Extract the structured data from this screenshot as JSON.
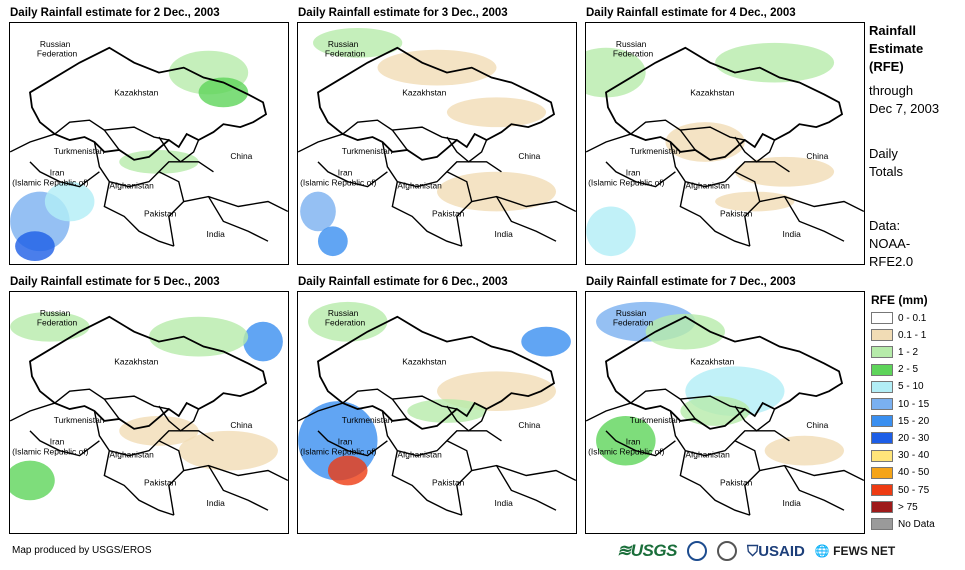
{
  "panels": [
    {
      "title": "Daily Rainfall estimate for 2 Dec., 2003"
    },
    {
      "title": "Daily Rainfall estimate for 3 Dec., 2003"
    },
    {
      "title": "Daily Rainfall estimate for 4 Dec., 2003"
    },
    {
      "title": "Daily Rainfall estimate for 5 Dec., 2003"
    },
    {
      "title": "Daily Rainfall estimate for 6 Dec., 2003"
    },
    {
      "title": "Daily Rainfall estimate for 7 Dec., 2003"
    }
  ],
  "map_labels": {
    "russia_1": "Russian",
    "russia_2": "Federation",
    "kazakhstan": "Kazakhstan",
    "turkmenistan": "Turkmenistan",
    "china": "China",
    "iran_1": "Iran",
    "iran_2": "(Islamic Republic of)",
    "afghanistan": "Afghanistan",
    "pakistan": "Pakistan",
    "india": "India"
  },
  "side": {
    "title_1": "Rainfall",
    "title_2": "Estimate",
    "title_3": "(RFE)",
    "through_1": "through",
    "through_2": "Dec 7, 2003",
    "daily_1": "Daily",
    "daily_2": "Totals",
    "data_1": "Data:",
    "data_2": "NOAA-",
    "data_3": "RFE2.0"
  },
  "legend": {
    "title": "RFE (mm)",
    "items": [
      {
        "label": "0 - 0.1",
        "color": "#ffffff"
      },
      {
        "label": "0.1 - 1",
        "color": "#f1dcb5"
      },
      {
        "label": "1 - 2",
        "color": "#b6ebaa"
      },
      {
        "label": "2 - 5",
        "color": "#5ed45a"
      },
      {
        "label": "5 - 10",
        "color": "#b2eef6"
      },
      {
        "label": "10 - 15",
        "color": "#7ab0f0"
      },
      {
        "label": "15 - 20",
        "color": "#3a8ff0"
      },
      {
        "label": "20 - 30",
        "color": "#1d5ee6"
      },
      {
        "label": "30 - 40",
        "color": "#ffe57a"
      },
      {
        "label": "40 - 50",
        "color": "#f5a418"
      },
      {
        "label": "50 - 75",
        "color": "#ee3b12"
      },
      {
        "label": "> 75",
        "color": "#9e1a1a"
      },
      {
        "label": "No Data",
        "color": "#9a9a9a"
      }
    ]
  },
  "credit": "Map produced by USGS/EROS",
  "logos": {
    "usgs": "USGS",
    "usaid": "USAID",
    "fews": "FEWS NET"
  }
}
